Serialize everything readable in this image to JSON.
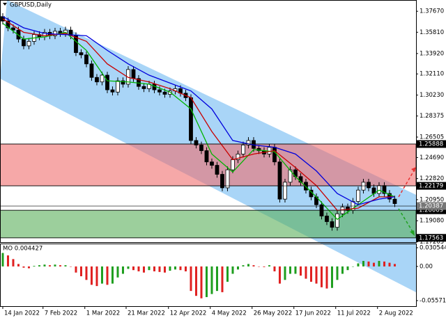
{
  "chart_data": [
    {
      "type": "candlestick",
      "title": "GBPUSD,Daily",
      "xlim": [
        -0.53,
        79.07
      ],
      "xticks": [
        {
          "value": 0,
          "label": "14 Jan 2022"
        },
        {
          "value": 7.7,
          "label": "7 Feb 2022"
        },
        {
          "value": 15.7,
          "label": "1 Mar 2022"
        },
        {
          "value": 23.6,
          "label": "21 Mar 2022"
        },
        {
          "value": 31.7,
          "label": "12 Apr 2022"
        },
        {
          "value": 39.7,
          "label": "4 May 2022"
        },
        {
          "value": 47.7,
          "label": "26 May 2022"
        },
        {
          "value": 55.7,
          "label": "17 Jun 2022"
        },
        {
          "value": 63.7,
          "label": "11 Jul 2022"
        },
        {
          "value": 71.7,
          "label": "2 Aug 2022"
        }
      ],
      "ylim": [
        1.1718,
        1.3867
      ],
      "yticks": [
        {
          "value": 1.3767,
          "label": "1.37670"
        },
        {
          "value": 1.3581,
          "label": "1.35810"
        },
        {
          "value": 1.3392,
          "label": "1.33920"
        },
        {
          "value": 1.3211,
          "label": "1.32110"
        },
        {
          "value": 1.3023,
          "label": "1.30230"
        },
        1.28375,
        1.26505,
        {
          "value": 1.2469,
          "label": "1.24690"
        },
        {
          "value": 1.2282,
          "label": "1.22820"
        },
        {
          "value": 1.2095,
          "label": "1.20950"
        },
        {
          "value": 1.1908,
          "label": "1.19080"
        },
        1.17205
      ],
      "up_color": "#ffffff",
      "down_color": "#000000",
      "open": [
        1.372,
        1.368,
        1.362,
        1.36,
        1.352,
        1.346,
        1.35,
        1.356,
        1.354,
        1.358,
        1.355,
        1.359,
        1.357,
        1.36,
        1.355,
        1.34,
        1.338,
        1.33,
        1.318,
        1.314,
        1.32,
        1.307,
        1.305,
        1.315,
        1.312,
        1.325,
        1.317,
        1.31,
        1.308,
        1.312,
        1.307,
        1.305,
        1.303,
        1.306,
        1.308,
        1.304,
        1.3,
        1.262,
        1.258,
        1.253,
        1.243,
        1.24,
        1.232,
        1.22,
        1.236,
        1.245,
        1.25,
        1.258,
        1.262,
        1.255,
        1.253,
        1.25,
        1.256,
        1.243,
        1.21,
        1.225,
        1.236,
        1.23,
        1.225,
        1.218,
        1.212,
        1.205,
        1.195,
        1.19,
        1.185,
        1.197,
        1.203,
        1.2,
        1.208,
        1.218,
        1.225,
        1.22,
        1.215,
        1.222,
        1.215,
        1.21
      ],
      "high": [
        1.375,
        1.371,
        1.365,
        1.363,
        1.355,
        1.353,
        1.359,
        1.359,
        1.361,
        1.361,
        1.362,
        1.362,
        1.363,
        1.363,
        1.358,
        1.343,
        1.341,
        1.333,
        1.321,
        1.323,
        1.323,
        1.31,
        1.318,
        1.318,
        1.328,
        1.328,
        1.32,
        1.313,
        1.315,
        1.315,
        1.31,
        1.308,
        1.309,
        1.311,
        1.311,
        1.307,
        1.303,
        1.265,
        1.261,
        1.256,
        1.246,
        1.243,
        1.235,
        1.239,
        1.248,
        1.253,
        1.261,
        1.265,
        1.265,
        1.258,
        1.256,
        1.259,
        1.259,
        1.246,
        1.228,
        1.239,
        1.239,
        1.233,
        1.228,
        1.221,
        1.215,
        1.208,
        1.198,
        1.193,
        1.2,
        1.206,
        1.206,
        1.211,
        1.221,
        1.228,
        1.228,
        1.223,
        1.225,
        1.225,
        1.218,
        1.213
      ],
      "low": [
        1.365,
        1.359,
        1.357,
        1.349,
        1.343,
        1.343,
        1.347,
        1.351,
        1.351,
        1.352,
        1.352,
        1.354,
        1.354,
        1.352,
        1.337,
        1.335,
        1.327,
        1.315,
        1.311,
        1.311,
        1.304,
        1.302,
        1.302,
        1.309,
        1.309,
        1.314,
        1.307,
        1.305,
        1.305,
        1.304,
        1.302,
        1.3,
        1.3,
        1.303,
        1.301,
        1.297,
        1.259,
        1.255,
        1.25,
        1.24,
        1.237,
        1.229,
        1.217,
        1.217,
        1.233,
        1.242,
        1.247,
        1.255,
        1.252,
        1.25,
        1.247,
        1.247,
        1.24,
        1.207,
        1.207,
        1.222,
        1.227,
        1.222,
        1.215,
        1.209,
        1.202,
        1.192,
        1.187,
        1.182,
        1.182,
        1.194,
        1.197,
        1.197,
        1.205,
        1.215,
        1.217,
        1.212,
        1.212,
        1.212,
        1.207,
        1.203
      ],
      "close": [
        1.368,
        1.362,
        1.36,
        1.352,
        1.346,
        1.35,
        1.356,
        1.354,
        1.358,
        1.355,
        1.359,
        1.357,
        1.36,
        1.355,
        1.34,
        1.338,
        1.33,
        1.318,
        1.314,
        1.32,
        1.307,
        1.305,
        1.315,
        1.312,
        1.325,
        1.317,
        1.31,
        1.308,
        1.312,
        1.307,
        1.305,
        1.303,
        1.306,
        1.308,
        1.304,
        1.3,
        1.262,
        1.258,
        1.253,
        1.243,
        1.24,
        1.232,
        1.22,
        1.236,
        1.245,
        1.25,
        1.258,
        1.262,
        1.255,
        1.253,
        1.25,
        1.256,
        1.243,
        1.21,
        1.225,
        1.236,
        1.23,
        1.225,
        1.218,
        1.212,
        1.205,
        1.195,
        1.19,
        1.185,
        1.197,
        1.203,
        1.2,
        1.208,
        1.218,
        1.225,
        1.22,
        1.215,
        1.222,
        1.215,
        1.21,
        1.206
      ],
      "lines": [
        {
          "color": "#00b400",
          "x": [
            0,
            4,
            8,
            12,
            16,
            20,
            24,
            28,
            32,
            36,
            40,
            44,
            48,
            52,
            56,
            60,
            64,
            68,
            72,
            75
          ],
          "values": [
            1.366,
            1.352,
            1.354,
            1.358,
            1.342,
            1.315,
            1.314,
            1.312,
            1.305,
            1.29,
            1.25,
            1.234,
            1.254,
            1.252,
            1.23,
            1.212,
            1.192,
            1.205,
            1.218,
            1.212
          ]
        },
        {
          "color": "#c80000",
          "x": [
            0,
            4,
            8,
            12,
            16,
            20,
            24,
            28,
            32,
            36,
            40,
            44,
            48,
            52,
            56,
            60,
            64,
            68,
            72,
            75
          ],
          "values": [
            1.37,
            1.358,
            1.355,
            1.357,
            1.35,
            1.33,
            1.318,
            1.314,
            1.308,
            1.3,
            1.27,
            1.245,
            1.25,
            1.253,
            1.238,
            1.222,
            1.2,
            1.202,
            1.212,
            1.212
          ]
        },
        {
          "color": "#0000dc",
          "x": [
            0,
            4,
            8,
            12,
            16,
            20,
            24,
            28,
            32,
            36,
            40,
            44,
            48,
            52,
            56,
            60,
            64,
            68,
            72,
            75
          ],
          "values": [
            1.372,
            1.362,
            1.357,
            1.356,
            1.355,
            1.342,
            1.33,
            1.32,
            1.313,
            1.306,
            1.29,
            1.262,
            1.258,
            1.256,
            1.25,
            1.235,
            1.215,
            1.205,
            1.21,
            1.212
          ]
        }
      ],
      "bands": [
        {
          "from": 1.25888,
          "to": 1.22179,
          "color": "rgba(240,110,110,0.6)"
        },
        {
          "from": 1.20009,
          "to": 1.17563,
          "color": "rgba(90,175,90,0.6)"
        }
      ],
      "levels": [
        1.20387
      ]
    },
    {
      "type": "bar",
      "title": "MO 0.004427",
      "ylim": [
        -0.0648,
        0.0362
      ],
      "yticks": [
        0.030544,
        {
          "value": 0,
          "label": "0.00"
        },
        -0.055719
      ],
      "up_color": "#1e9e1e",
      "down_color": "#e02020",
      "values": [
        0.022,
        0.018,
        0.012,
        0.004,
        -0.002,
        -0.003,
        0.001,
        0.002,
        0.003,
        0.002,
        0.003,
        0.002,
        0.002,
        0.0,
        -0.01,
        -0.016,
        -0.022,
        -0.03,
        -0.032,
        -0.028,
        -0.03,
        -0.028,
        -0.018,
        -0.012,
        -0.004,
        -0.006,
        -0.008,
        -0.01,
        -0.006,
        -0.008,
        -0.009,
        -0.01,
        -0.007,
        -0.005,
        -0.006,
        -0.008,
        -0.04,
        -0.048,
        -0.052,
        -0.05,
        -0.045,
        -0.04,
        -0.042,
        -0.025,
        -0.012,
        -0.005,
        0.002,
        0.004,
        0.002,
        0.0,
        -0.001,
        0.002,
        -0.008,
        -0.028,
        -0.022,
        -0.012,
        -0.012,
        -0.015,
        -0.02,
        -0.025,
        -0.028,
        -0.034,
        -0.036,
        -0.035,
        -0.022,
        -0.012,
        -0.006,
        0.0,
        0.005,
        0.009,
        0.008,
        0.006,
        0.009,
        0.008,
        0.006,
        0.004
      ]
    }
  ]
}
